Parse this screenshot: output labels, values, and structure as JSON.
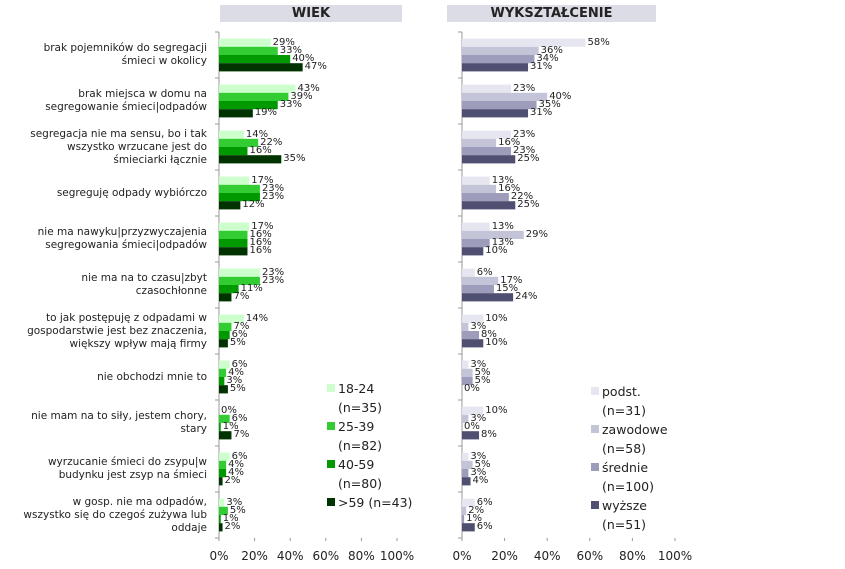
{
  "chart_data": [
    {
      "type": "hbar",
      "title": "WIEK",
      "categories": [
        "brak pojemników do segregacji śmieci w okolicy",
        "brak miejsca w domu na segregowanie śmieci|odpadów",
        "segregacja nie ma sensu, bo i tak wszystko wrzucane jest do śmieciarki łącznie",
        "segreguję odpady wybiórczo",
        "nie ma nawyku|przyzwyczajenia segregowania śmieci|odpadów",
        "nie ma na to czasu|zbyt czasochłonne",
        "to jak postępuję z odpadami w gospodarstwie jest bez znaczenia, większy wpływ mają firmy",
        "nie obchodzi mnie to",
        "nie mam na to siły, jestem chory, stary",
        "wyrzucanie śmieci do zsypu|w budynku jest zsyp na śmieci",
        "w gosp. nie ma odpadów, wszystko się do czegoś zużywa lub oddaje"
      ],
      "series": [
        {
          "name": "18-24 (n=35)",
          "color": "#ccffcc",
          "values": [
            29,
            43,
            14,
            17,
            17,
            23,
            14,
            6,
            0,
            6,
            3
          ],
          "value_labels": [
            "29%",
            "43%",
            "14%",
            "17%",
            "17%",
            "23%",
            "14%",
            "6%",
            "0%",
            "6%",
            "3%"
          ]
        },
        {
          "name": "25-39 (n=82)",
          "color": "#33cc33",
          "values": [
            33,
            39,
            22,
            23,
            16,
            23,
            7,
            4,
            6,
            4,
            5
          ],
          "value_labels": [
            "33%",
            "39%",
            "22%",
            "23%",
            "16%",
            "23%",
            "7%",
            "4%",
            "6%",
            "4%",
            "5%"
          ]
        },
        {
          "name": "40-59 (n=80)",
          "color": "#009900",
          "values": [
            40,
            33,
            16,
            23,
            16,
            11,
            6,
            3,
            1,
            4,
            1
          ],
          "value_labels": [
            "40%",
            "33%",
            "16%",
            "23%",
            "16%",
            "11%",
            "6%",
            "3%",
            "1%",
            "4%",
            "1%"
          ]
        },
        {
          "name": ">59 (n=43)",
          "color": "#003300",
          "values": [
            47,
            19,
            35,
            12,
            16,
            7,
            5,
            5,
            7,
            2,
            2
          ],
          "value_labels": [
            "47%",
            "19%",
            "35%",
            "12%",
            "16%",
            "7%",
            "5%",
            "5%",
            "7%",
            "2%",
            "2%"
          ]
        }
      ],
      "xlim": [
        0,
        100
      ],
      "xticks": [
        {
          "value": 0,
          "label": "0%"
        },
        {
          "value": 20,
          "label": "20%"
        },
        {
          "value": 40,
          "label": "40%"
        },
        {
          "value": 60,
          "label": "60%"
        },
        {
          "value": 80,
          "label": "80%"
        },
        {
          "value": 100,
          "label": "100%"
        }
      ]
    },
    {
      "type": "hbar",
      "title": "WYKSZTAŁCENIE",
      "series": [
        {
          "name": "podst. (n=31)",
          "color": "#e6e6f0",
          "values": [
            58,
            23,
            23,
            13,
            13,
            6,
            10,
            3,
            10,
            3,
            6
          ],
          "value_labels": [
            "58%",
            "23%",
            "23%",
            "13%",
            "13%",
            "6%",
            "10%",
            "3%",
            "10%",
            "3%",
            "6%"
          ]
        },
        {
          "name": "zawodowe (n=58)",
          "color": "#c4c4d9",
          "values": [
            36,
            40,
            16,
            16,
            29,
            17,
            3,
            5,
            3,
            5,
            2
          ],
          "value_labels": [
            "36%",
            "40%",
            "16%",
            "16%",
            "29%",
            "17%",
            "3%",
            "5%",
            "3%",
            "5%",
            "2%"
          ]
        },
        {
          "name": "średnie (n=100)",
          "color": "#9d9dbb",
          "values": [
            34,
            35,
            23,
            22,
            13,
            15,
            8,
            5,
            0,
            3,
            1
          ],
          "value_labels": [
            "34%",
            "35%",
            "23%",
            "22%",
            "13%",
            "15%",
            "8%",
            "5%",
            "0%",
            "3%",
            "1%"
          ]
        },
        {
          "name": "wyższe (n=51)",
          "color": "#4f4f72",
          "values": [
            31,
            31,
            25,
            25,
            10,
            24,
            10,
            0,
            8,
            4,
            6
          ],
          "value_labels": [
            "31%",
            "31%",
            "25%",
            "25%",
            "10%",
            "24%",
            "10%",
            "0%",
            "8%",
            "4%",
            "6%"
          ]
        }
      ],
      "xlim": [
        0,
        100
      ],
      "xticks": [
        {
          "value": 0,
          "label": "0%"
        },
        {
          "value": 20,
          "label": "20%"
        },
        {
          "value": 40,
          "label": "40%"
        },
        {
          "value": 60,
          "label": "60%"
        },
        {
          "value": 80,
          "label": "80%"
        },
        {
          "value": 100,
          "label": "100%"
        }
      ]
    }
  ]
}
